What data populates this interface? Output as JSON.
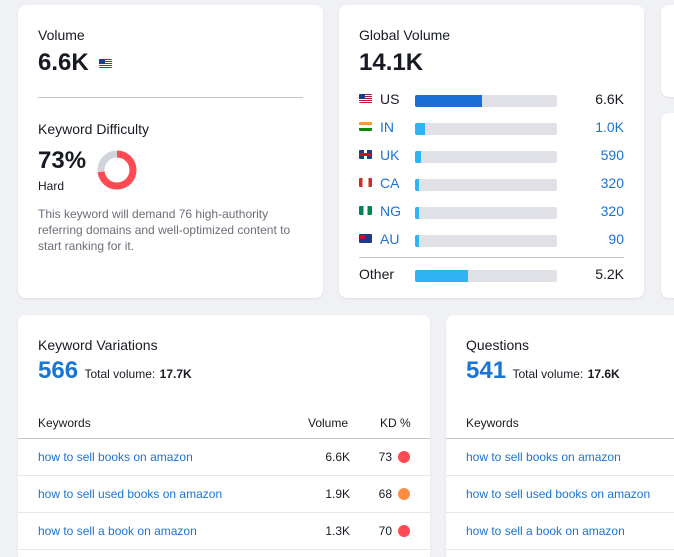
{
  "volume_card": {
    "title": "Volume",
    "value": "6.6K",
    "flag_icon": "us-flag-icon",
    "kd_title": "Keyword Difficulty",
    "kd_value": "73%",
    "kd_level": "Hard",
    "kd_percent": 73,
    "kd_color": "#ff4953",
    "kd_description": "This keyword will demand 76 high-authority referring domains and well-optimized content to start ranking for it."
  },
  "global_card": {
    "title": "Global Volume",
    "value": "14.1K",
    "bar_color_primary": "#1a6fd4",
    "bar_color_secondary": "#2eb4f5",
    "countries": [
      {
        "code": "US",
        "value": "6.6K",
        "share": 0.47,
        "flag": "us-flag-icon"
      },
      {
        "code": "IN",
        "value": "1.0K",
        "share": 0.07,
        "flag": "in-flag-icon"
      },
      {
        "code": "UK",
        "value": "590",
        "share": 0.04,
        "flag": "uk-flag-icon"
      },
      {
        "code": "CA",
        "value": "320",
        "share": 0.02,
        "flag": "ca-flag-icon"
      },
      {
        "code": "NG",
        "value": "320",
        "share": 0.02,
        "flag": "ng-flag-icon"
      },
      {
        "code": "AU",
        "value": "90",
        "share": 0.01,
        "flag": "au-flag-icon"
      }
    ],
    "other_label": "Other",
    "other_value": "5.2K",
    "other_share": 0.37
  },
  "variations_card": {
    "title": "Keyword Variations",
    "count": "566",
    "total_label": "Total volume:",
    "total_value": "17.7K",
    "columns": {
      "keywords": "Keywords",
      "volume": "Volume",
      "kd": "KD %"
    },
    "rows": [
      {
        "keyword": "how to sell books on amazon",
        "volume": "6.6K",
        "kd": "73",
        "kd_color": "#ff4953"
      },
      {
        "keyword": "how to sell used books on amazon",
        "volume": "1.9K",
        "kd": "68",
        "kd_color": "#ff8c43"
      },
      {
        "keyword": "how to sell a book on amazon",
        "volume": "1.3K",
        "kd": "70",
        "kd_color": "#ff4953"
      }
    ]
  },
  "questions_card": {
    "title": "Questions",
    "count": "541",
    "total_label": "Total volume:",
    "total_value": "17.6K",
    "columns": {
      "keywords": "Keywords"
    },
    "rows": [
      {
        "keyword": "how to sell books on amazon"
      },
      {
        "keyword": "how to sell used books on amazon"
      },
      {
        "keyword": "how to sell a book on amazon"
      }
    ]
  }
}
